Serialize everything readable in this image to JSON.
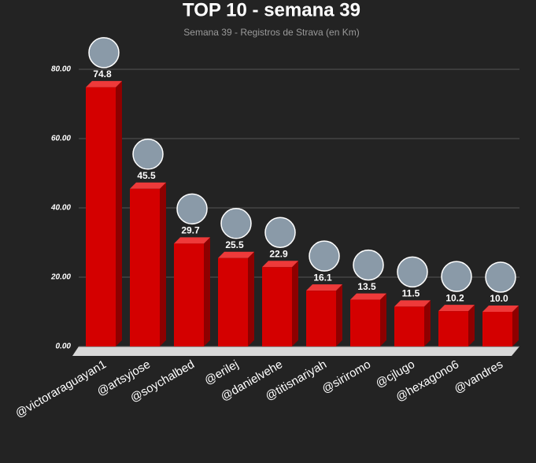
{
  "chart_data": {
    "type": "bar3d",
    "title": "TOP 10 - semana 39",
    "subtitle": "Semana 39 - Registros de Strava (en Km)",
    "categories": [
      "@victoraraguayan1",
      "@artsyjose",
      "@soychalbed",
      "@erilej",
      "@danielvehe",
      "@titisnariyah",
      "@siriromo",
      "@cjlugo",
      "@hexagono6",
      "@vandres"
    ],
    "values": [
      74.8,
      45.5,
      29.7,
      25.5,
      22.9,
      16.1,
      13.5,
      11.5,
      10.2,
      10.0
    ],
    "value_labels": [
      "74.8",
      "45.5",
      "29.7",
      "25.5",
      "22.9",
      "16.1",
      "13.5",
      "11.5",
      "10.2",
      "10.0"
    ],
    "color": "#d40000",
    "ylim": [
      0,
      80
    ],
    "yticks": [
      {
        "value": 0,
        "label": "0.00"
      },
      {
        "value": 20,
        "label": "20.00"
      },
      {
        "value": 40,
        "label": "40.00"
      },
      {
        "value": 60,
        "label": "60.00"
      },
      {
        "value": 80,
        "label": "80.00"
      }
    ],
    "grid": true
  }
}
